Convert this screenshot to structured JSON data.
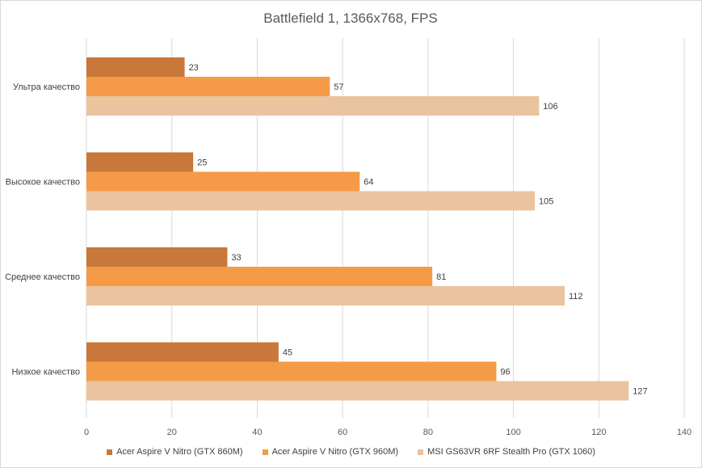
{
  "chart_data": {
    "type": "bar",
    "orientation": "horizontal",
    "title": "Battlefield 1, 1366x768, FPS",
    "categories": [
      "Ультра качество",
      "Высокое качество",
      "Среднее качество",
      "Низкое качество"
    ],
    "series": [
      {
        "name": "Acer Aspire V Nitro (GTX 860M)",
        "color": "#c9773a",
        "values": [
          23,
          25,
          33,
          45
        ]
      },
      {
        "name": "Acer Aspire V Nitro (GTX 960M)",
        "color": "#f59b48",
        "values": [
          57,
          64,
          81,
          96
        ]
      },
      {
        "name": "MSI GS63VR 6RF Stealth Pro (GTX 1060)",
        "color": "#e9c49e",
        "values": [
          106,
          105,
          112,
          127
        ]
      }
    ],
    "xlim": [
      0,
      140
    ],
    "xticks": [
      0,
      20,
      40,
      60,
      80,
      100,
      120,
      140
    ],
    "grid": true,
    "legend_position": "bottom"
  }
}
